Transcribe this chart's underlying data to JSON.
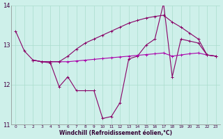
{
  "xlabel": "Windchill (Refroidissement éolien,°C)",
  "background_color": "#cef0ea",
  "grid_color": "#aaddcc",
  "line_color_dark": "#880066",
  "line_color_mid": "#aa00aa",
  "xlim": [
    -0.5,
    23.5
  ],
  "ylim": [
    11.0,
    14.0
  ],
  "yticks": [
    11,
    12,
    13,
    14
  ],
  "xticks": [
    0,
    1,
    2,
    3,
    4,
    5,
    6,
    7,
    8,
    9,
    10,
    11,
    12,
    13,
    14,
    15,
    16,
    17,
    18,
    19,
    20,
    21,
    22,
    23
  ],
  "s1_x": [
    0,
    1,
    2,
    3,
    4,
    5,
    6,
    7,
    8,
    9,
    10,
    11,
    12,
    13,
    14,
    15,
    16,
    17,
    18,
    19,
    20,
    21,
    22,
    23
  ],
  "s1_y": [
    13.35,
    12.85,
    12.62,
    12.58,
    12.55,
    11.95,
    12.2,
    11.85,
    11.85,
    11.85,
    11.15,
    11.2,
    11.55,
    12.65,
    12.72,
    13.0,
    13.15,
    14.05,
    12.2,
    13.15,
    13.1,
    13.05,
    12.75,
    12.72
  ],
  "s2_x": [
    2,
    3,
    4,
    5,
    6,
    7,
    8,
    9,
    10,
    11,
    12,
    13,
    14,
    15,
    16,
    17,
    18,
    19,
    20,
    21,
    22,
    23
  ],
  "s2_y": [
    12.62,
    12.58,
    12.58,
    12.58,
    12.58,
    12.6,
    12.62,
    12.64,
    12.66,
    12.68,
    12.7,
    12.72,
    12.74,
    12.76,
    12.78,
    12.8,
    12.72,
    12.75,
    12.78,
    12.8,
    12.75,
    12.72
  ],
  "s3_x": [
    2,
    3,
    4,
    5,
    6,
    7,
    8,
    9,
    10,
    11,
    12,
    13,
    14,
    15,
    16,
    17,
    18,
    19,
    20,
    21,
    22,
    23
  ],
  "s3_y": [
    12.62,
    12.58,
    12.58,
    12.58,
    12.72,
    12.9,
    13.05,
    13.15,
    13.25,
    13.35,
    13.45,
    13.55,
    13.62,
    13.68,
    13.72,
    13.75,
    13.58,
    13.45,
    13.3,
    13.15,
    12.75,
    12.72
  ]
}
